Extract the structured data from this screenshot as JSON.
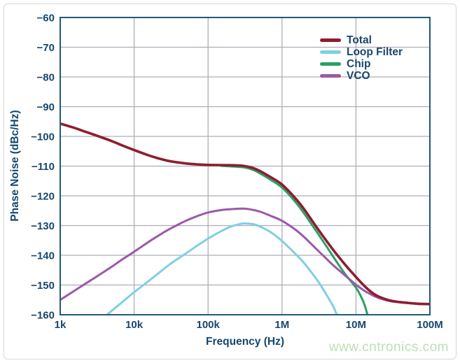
{
  "page": {
    "watermark": "www.cntronics.com"
  },
  "colors": {
    "axis_text": "#17466e",
    "frame": "#225a77",
    "grid": "#aeadb9",
    "background": "#ffffff",
    "watermark": "#bcdfb6"
  },
  "chart_data": {
    "type": "line",
    "title": "",
    "xlabel": "Frequency (Hz)",
    "ylabel": "Phase Noise (dBc/Hz)",
    "x_scale": "log",
    "xlim": [
      1000,
      100000000
    ],
    "ylim": [
      -160,
      -60
    ],
    "grid": true,
    "legend_position": "top-right",
    "xticks": [
      {
        "f": 1000,
        "label": "1k"
      },
      {
        "f": 10000,
        "label": "10k"
      },
      {
        "f": 100000,
        "label": "100k"
      },
      {
        "f": 1000000,
        "label": "1M"
      },
      {
        "f": 10000000,
        "label": "10M"
      },
      {
        "f": 100000000,
        "label": "100M"
      }
    ],
    "yticks": [
      {
        "v": -60,
        "label": "−60"
      },
      {
        "v": -70,
        "label": "−70"
      },
      {
        "v": -80,
        "label": "−80"
      },
      {
        "v": -90,
        "label": "−90"
      },
      {
        "v": -100,
        "label": "−100"
      },
      {
        "v": -110,
        "label": "−110"
      },
      {
        "v": -120,
        "label": "−120"
      },
      {
        "v": -130,
        "label": "−130"
      },
      {
        "v": -140,
        "label": "−140"
      },
      {
        "v": -150,
        "label": "−150"
      },
      {
        "v": -160,
        "label": "−160"
      }
    ],
    "draw_order": [
      2,
      1,
      3,
      0
    ],
    "series": [
      {
        "name": "Total",
        "color": "#8e1d30",
        "width": 3.6,
        "points": [
          [
            1000,
            -95.7
          ],
          [
            1500,
            -97.0
          ],
          [
            2000,
            -98.1
          ],
          [
            3000,
            -99.6
          ],
          [
            5000,
            -101.6
          ],
          [
            7000,
            -103.1
          ],
          [
            10000,
            -104.6
          ],
          [
            15000,
            -106.2
          ],
          [
            20000,
            -107.2
          ],
          [
            30000,
            -108.3
          ],
          [
            50000,
            -109.1
          ],
          [
            70000,
            -109.4
          ],
          [
            100000,
            -109.6
          ],
          [
            200000,
            -109.7
          ],
          [
            300000,
            -109.9
          ],
          [
            400000,
            -110.6
          ],
          [
            500000,
            -111.6
          ],
          [
            700000,
            -113.7
          ],
          [
            1000000,
            -116.2
          ],
          [
            1500000,
            -120.7
          ],
          [
            2000000,
            -124.6
          ],
          [
            3000000,
            -130.9
          ],
          [
            4000000,
            -135.2
          ],
          [
            5000000,
            -138.4
          ],
          [
            7000000,
            -142.9
          ],
          [
            10000000,
            -147.3
          ],
          [
            13000000,
            -150.3
          ],
          [
            16000000,
            -152.3
          ],
          [
            20000000,
            -153.8
          ],
          [
            30000000,
            -155.3
          ],
          [
            50000000,
            -156.0
          ],
          [
            70000000,
            -156.3
          ],
          [
            100000000,
            -156.4
          ]
        ]
      },
      {
        "name": "Loop Filter",
        "color": "#7fd0e2",
        "width": 3,
        "points": [
          [
            4300,
            -160
          ],
          [
            5000,
            -158.6
          ],
          [
            6000,
            -157.0
          ],
          [
            8000,
            -154.4
          ],
          [
            10000,
            -152.4
          ],
          [
            13400,
            -150.0
          ],
          [
            20000,
            -146.6
          ],
          [
            30000,
            -143.1
          ],
          [
            46000,
            -140.0
          ],
          [
            70000,
            -136.9
          ],
          [
            100000,
            -134.4
          ],
          [
            150000,
            -131.9
          ],
          [
            200000,
            -130.4
          ],
          [
            250000,
            -129.7
          ],
          [
            300000,
            -129.3
          ],
          [
            400000,
            -129.5
          ],
          [
            500000,
            -130.3
          ],
          [
            700000,
            -132.2
          ],
          [
            1000000,
            -135.2
          ],
          [
            1500000,
            -139.4
          ],
          [
            2000000,
            -142.7
          ],
          [
            3000000,
            -148.4
          ],
          [
            4000000,
            -153.3
          ],
          [
            5000000,
            -157.5
          ],
          [
            5500000,
            -160
          ]
        ]
      },
      {
        "name": "Chip",
        "color": "#2aa064",
        "width": 3,
        "points": [
          [
            150000,
            -109.9
          ],
          [
            200000,
            -110.1
          ],
          [
            300000,
            -110.4
          ],
          [
            400000,
            -111.2
          ],
          [
            500000,
            -112.4
          ],
          [
            700000,
            -114.6
          ],
          [
            1000000,
            -117.2
          ],
          [
            1500000,
            -121.9
          ],
          [
            2000000,
            -126.0
          ],
          [
            3000000,
            -132.4
          ],
          [
            4000000,
            -137.0
          ],
          [
            5000000,
            -140.7
          ],
          [
            7000000,
            -146.0
          ],
          [
            10000000,
            -150.9
          ],
          [
            11500000,
            -153.5
          ],
          [
            13000000,
            -156.5
          ],
          [
            14300000,
            -160
          ]
        ]
      },
      {
        "name": "VCO",
        "color": "#9c58a8",
        "width": 3,
        "points": [
          [
            1000,
            -155.0
          ],
          [
            1500,
            -152.2
          ],
          [
            2000,
            -150.2
          ],
          [
            3000,
            -147.4
          ],
          [
            5000,
            -143.8
          ],
          [
            7000,
            -141.3
          ],
          [
            10000,
            -138.8
          ],
          [
            15000,
            -135.8
          ],
          [
            20000,
            -133.8
          ],
          [
            30000,
            -131.2
          ],
          [
            50000,
            -128.4
          ],
          [
            70000,
            -126.9
          ],
          [
            100000,
            -125.6
          ],
          [
            150000,
            -124.8
          ],
          [
            200000,
            -124.5
          ],
          [
            300000,
            -124.3
          ],
          [
            400000,
            -124.7
          ],
          [
            500000,
            -125.3
          ],
          [
            700000,
            -126.7
          ],
          [
            1000000,
            -128.4
          ],
          [
            1500000,
            -131.3
          ],
          [
            2000000,
            -133.9
          ],
          [
            3000000,
            -138.2
          ],
          [
            4000000,
            -141.2
          ],
          [
            5000000,
            -143.5
          ],
          [
            7000000,
            -146.6
          ],
          [
            10000000,
            -149.9
          ],
          [
            13000000,
            -151.9
          ],
          [
            16000000,
            -153.2
          ],
          [
            20000000,
            -154.3
          ],
          [
            30000000,
            -155.5
          ],
          [
            50000000,
            -156.1
          ],
          [
            70000000,
            -156.4
          ],
          [
            100000000,
            -156.5
          ]
        ]
      }
    ]
  }
}
